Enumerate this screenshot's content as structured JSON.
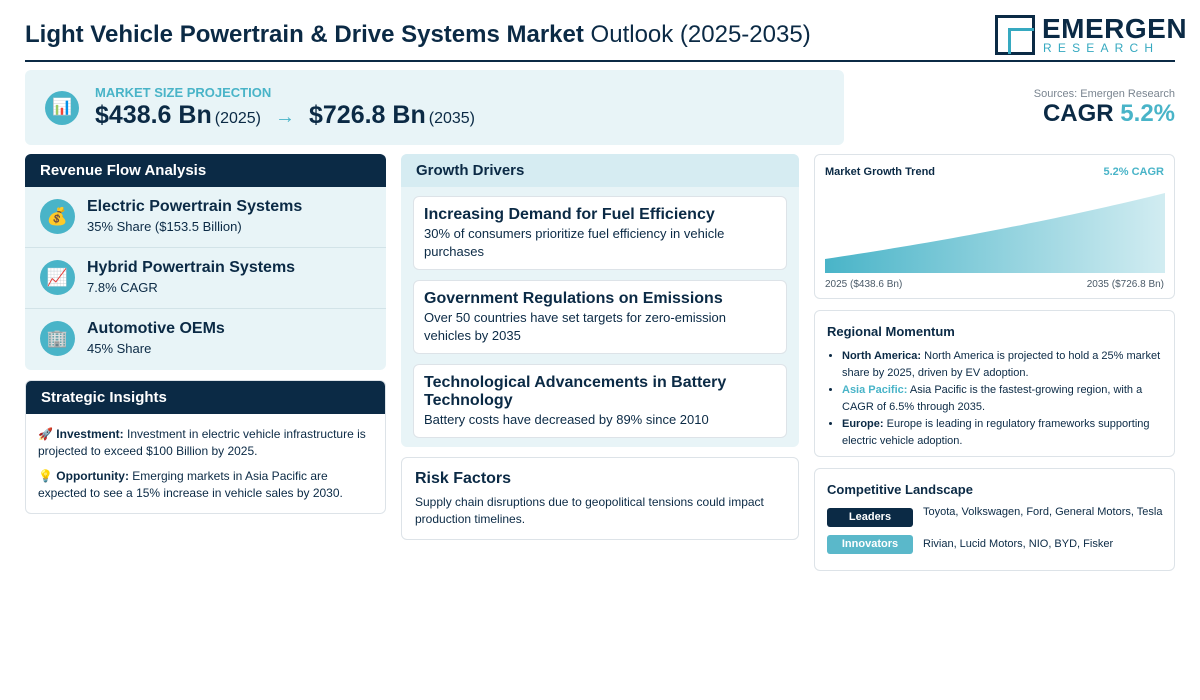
{
  "header": {
    "title_bold": "Light Vehicle Powertrain & Drive Systems Market",
    "title_rest": "Outlook (2025-2035)",
    "logo_name": "EMERGEN",
    "logo_sub": "RESEARCH"
  },
  "market": {
    "label": "MARKET SIZE PROJECTION",
    "icon": "bar-chart-icon",
    "start_value": "$438.6 Bn",
    "start_year": "(2025)",
    "arrow": "→",
    "end_value": "$726.8 Bn",
    "end_year": "(2035)",
    "sources": "Sources: Emergen Research",
    "cagr_label": "CAGR",
    "cagr_value": "5.2%"
  },
  "revenue": {
    "heading": "Revenue Flow Analysis",
    "items": [
      {
        "icon": "💰",
        "title": "Electric Powertrain Systems",
        "sub": "35% Share ($153.5 Billion)"
      },
      {
        "icon": "📈",
        "title": "Hybrid Powertrain Systems",
        "sub": "7.8% CAGR"
      },
      {
        "icon": "🏢",
        "title": "Automotive OEMs",
        "sub": "45% Share"
      }
    ]
  },
  "insights": {
    "heading": "Strategic Insights",
    "items": [
      {
        "icon": "🚀",
        "label": "Investment:",
        "text": "Investment in electric vehicle infrastructure is projected to exceed $100 Billion by 2025."
      },
      {
        "icon": "💡",
        "label": "Opportunity:",
        "text": "Emerging markets in Asia Pacific are expected to see a 15% increase in vehicle sales by 2030."
      }
    ]
  },
  "drivers": {
    "heading": "Growth Drivers",
    "items": [
      {
        "title": "Increasing Demand for Fuel Efficiency",
        "text": "30% of consumers prioritize fuel efficiency in vehicle purchases"
      },
      {
        "title": "Government Regulations on Emissions",
        "text": "Over 50 countries have set targets for zero-emission vehicles by 2035"
      },
      {
        "title": "Technological Advancements in Battery Technology",
        "text": "Battery costs have decreased by 89% since 2010"
      }
    ]
  },
  "risk": {
    "heading": "Risk Factors",
    "text": "Supply chain disruptions due to geopolitical tensions could impact production timelines."
  },
  "trend": {
    "title": "Market Growth Trend",
    "cagr": "5.2% CAGR",
    "left_label": "2025 ($438.6 Bn)",
    "right_label": "2035 ($726.8 Bn)"
  },
  "chart_data": {
    "type": "area",
    "title": "Market Growth Trend",
    "x": [
      2025,
      2035
    ],
    "values": [
      438.6,
      726.8
    ],
    "xlabel": "",
    "ylabel": "",
    "grid": false,
    "fill_color": "#49b4c8"
  },
  "regional": {
    "heading": "Regional Momentum",
    "items": [
      {
        "name": "North America:",
        "text": "North America is projected to hold a 25% market share by 2025, driven by EV adoption.",
        "accent": false
      },
      {
        "name": "Asia Pacific:",
        "text": "Asia Pacific is the fastest-growing region, with a CAGR of 6.5% through 2035.",
        "accent": true
      },
      {
        "name": "Europe:",
        "text": "Europe is leading in regulatory frameworks supporting electric vehicle adoption.",
        "accent": false
      }
    ]
  },
  "competitive": {
    "heading": "Competitive Landscape",
    "rows": [
      {
        "tag": "Leaders",
        "names": "Toyota, Volkswagen, Ford, General Motors, Tesla",
        "color": "#0b2a45"
      },
      {
        "tag": "Innovators",
        "names": "Rivian, Lucid Motors, NIO, BYD, Fisker",
        "color": "#5ab8ca"
      }
    ]
  }
}
